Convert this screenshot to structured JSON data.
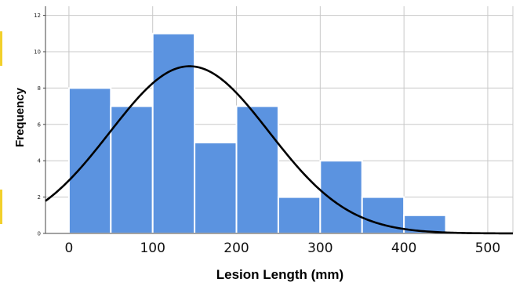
{
  "chart_data": {
    "type": "bar",
    "subtype": "histogram",
    "title": "",
    "xlabel": "Lesion Length (mm)",
    "ylabel": "Frequency",
    "xlim": [
      -28,
      530
    ],
    "ylim": [
      0,
      12.5
    ],
    "xticks": [
      0,
      100,
      200,
      300,
      400,
      500
    ],
    "yticks": [
      0,
      2,
      4,
      6,
      8,
      10,
      12
    ],
    "bin_width": 50,
    "bins": [
      {
        "start": 0,
        "end": 50,
        "value": 8
      },
      {
        "start": 50,
        "end": 100,
        "value": 7
      },
      {
        "start": 100,
        "end": 150,
        "value": 11
      },
      {
        "start": 150,
        "end": 200,
        "value": 5
      },
      {
        "start": 200,
        "end": 250,
        "value": 7
      },
      {
        "start": 250,
        "end": 300,
        "value": 2
      },
      {
        "start": 300,
        "end": 350,
        "value": 4
      },
      {
        "start": 350,
        "end": 400,
        "value": 2
      },
      {
        "start": 400,
        "end": 450,
        "value": 1
      }
    ],
    "normal_curve": {
      "mean": 144,
      "std_dev": 95,
      "n": 47,
      "peak_frequency": 9.2
    },
    "grid": true,
    "colors": {
      "bar_fill": "#5b93e0",
      "bar_edge": "#ffffff",
      "curve": "#000000",
      "grid": "#c8c8c8",
      "edge_mark": "#f2d02c"
    }
  }
}
